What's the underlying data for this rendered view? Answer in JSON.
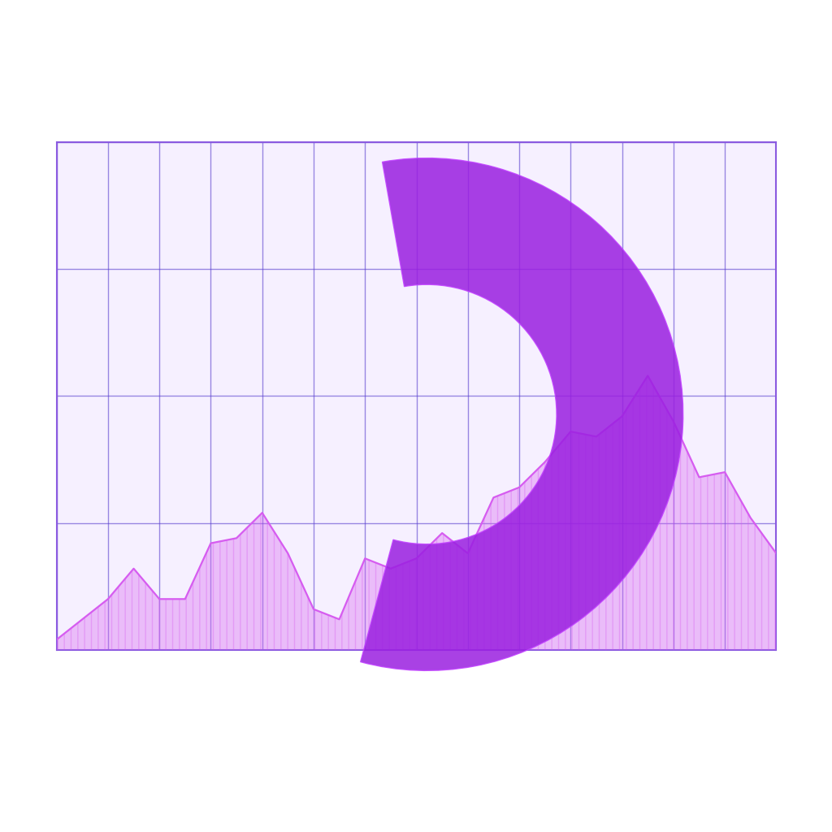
{
  "chart_data": {
    "type": "area",
    "x": [
      0,
      1,
      2,
      3,
      4,
      5,
      6,
      7,
      8,
      9,
      10,
      11,
      12,
      13,
      14,
      15,
      16,
      17,
      18,
      19,
      20,
      21,
      22,
      23,
      24,
      25,
      26,
      27,
      28
    ],
    "values": [
      2,
      6,
      10,
      16,
      10,
      10,
      21,
      22,
      27,
      19,
      8,
      6,
      18,
      16,
      18,
      23,
      19,
      30,
      32,
      37,
      43,
      42,
      46,
      54,
      45,
      34,
      35,
      26,
      19
    ],
    "color": "#d65cf0",
    "xlim": [
      0,
      28
    ],
    "ylim": [
      0,
      100
    ],
    "xticks": [
      0,
      2,
      4,
      6,
      8,
      10,
      12,
      14,
      16,
      18,
      20,
      22,
      24,
      26,
      28
    ],
    "yticks": [
      0,
      25,
      50,
      75,
      100
    ],
    "grid": true,
    "tick_labels": false
  }
}
